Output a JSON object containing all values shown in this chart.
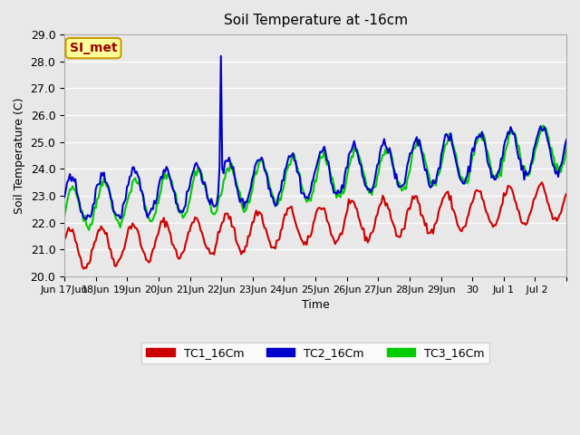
{
  "title": "Soil Temperature at -16cm",
  "xlabel": "Time",
  "ylabel": "Soil Temperature (C)",
  "ylim": [
    20.0,
    29.0
  ],
  "yticks": [
    20.0,
    21.0,
    22.0,
    23.0,
    24.0,
    25.0,
    26.0,
    27.0,
    28.0,
    29.0
  ],
  "bg_color": "#e8e8e8",
  "plot_bg_color": "#e8e8e8",
  "grid_color": "#ffffff",
  "series": {
    "TC1_16Cm": {
      "color": "#cc0000",
      "linewidth": 1.5
    },
    "TC2_16Cm": {
      "color": "#0000cc",
      "linewidth": 1.5
    },
    "TC3_16Cm": {
      "color": "#00cc00",
      "linewidth": 1.5
    }
  },
  "annotation_text": "SI_met",
  "annotation_bg": "#ffff99",
  "annotation_border": "#cc9900",
  "annotation_text_color": "#990000",
  "x_tick_labels": [
    "Jun 17Jun",
    "18Jun",
    "19Jun",
    "20Jun",
    "21Jun",
    "22Jun",
    "23Jun",
    "24Jun",
    "25Jun",
    "26Jun",
    "27Jun",
    "28Jun",
    "29Jun",
    "30",
    "Jul 1",
    " Jul 2",
    ""
  ],
  "n_points": 370
}
